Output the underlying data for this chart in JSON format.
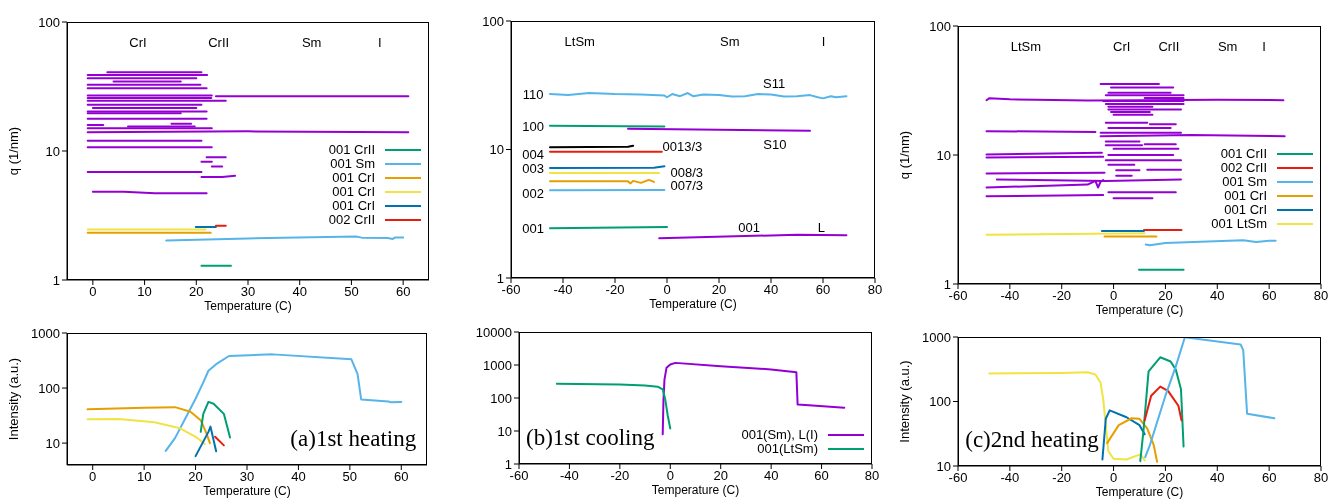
{
  "chart_data": [
    {
      "type": "line",
      "xlabel": "Temperature (C)",
      "ylabel": "q (1/nm)",
      "log": "y",
      "xlim": [
        -5,
        65
      ],
      "xticks": [
        0,
        10,
        20,
        30,
        40,
        50,
        60
      ],
      "ylim": [
        1,
        100
      ],
      "yticks": [
        1,
        10,
        100
      ],
      "legend": "right",
      "annotations": [
        "CrI",
        "CrII",
        "Sm",
        "I"
      ],
      "series": [
        {
          "color": "#9400d3",
          "x": [
            -1,
            22.1
          ],
          "values": [
            38.9,
            38.9
          ]
        },
        {
          "color": "#9400d3",
          "x": [
            2.8,
            21
          ],
          "values": [
            40.8,
            40.8
          ]
        },
        {
          "color": "#9400d3",
          "x": [
            -1,
            20
          ],
          "values": [
            36.7,
            36.7
          ]
        },
        {
          "color": "#9400d3",
          "x": [
            4,
            17
          ],
          "values": [
            34.6,
            34.6
          ]
        },
        {
          "color": "#9400d3",
          "x": [
            -1,
            20.8
          ],
          "values": [
            32.6,
            32.6
          ]
        },
        {
          "color": "#9400d3",
          "x": [
            -1,
            22
          ],
          "values": [
            30.7,
            30.7
          ]
        },
        {
          "color": "#9400d3",
          "x": [
            -1,
            23
          ],
          "values": [
            26.9,
            26.9
          ]
        },
        {
          "color": "#9400d3",
          "x": [
            23.8,
            61
          ],
          "values": [
            26.6,
            26.6
          ]
        },
        {
          "color": "#9400d3",
          "x": [
            -1,
            22.9
          ],
          "values": [
            25.7,
            25.7
          ]
        },
        {
          "color": "#9400d3",
          "x": [
            -1,
            25.7
          ],
          "values": [
            24.5,
            24.5
          ]
        },
        {
          "color": "#9400d3",
          "x": [
            -1,
            21
          ],
          "values": [
            22.8,
            22.8
          ]
        },
        {
          "color": "#9400d3",
          "x": [
            0,
            20
          ],
          "values": [
            21.5,
            21.5
          ]
        },
        {
          "color": "#9400d3",
          "x": [
            -1,
            22
          ],
          "values": [
            20.2,
            20.2
          ]
        },
        {
          "color": "#9400d3",
          "x": [
            -1,
            17
          ],
          "values": [
            19.6,
            19.6
          ]
        },
        {
          "color": "#9400d3",
          "x": [
            -1,
            22
          ],
          "values": [
            17.8,
            17.8
          ]
        },
        {
          "color": "#9400d3",
          "x": [
            -1,
            2
          ],
          "values": [
            15.9,
            15.9
          ]
        },
        {
          "color": "#9400d3",
          "x": [
            6.8,
            19.7
          ],
          "values": [
            15.5,
            15.5
          ]
        },
        {
          "color": "#9400d3",
          "x": [
            15.2,
            19
          ],
          "values": [
            16.3,
            16.3
          ]
        },
        {
          "color": "#9400d3",
          "x": [
            -1,
            23
          ],
          "values": [
            15,
            15
          ]
        },
        {
          "color": "#9400d3",
          "x": [
            -1,
            30,
            61
          ],
          "values": [
            14,
            14.2,
            14
          ]
        },
        {
          "color": "#9400d3",
          "x": [
            -1,
            21
          ],
          "values": [
            12,
            12
          ]
        },
        {
          "color": "#9400d3",
          "x": [
            -1,
            23
          ],
          "values": [
            10.7,
            10.7
          ]
        },
        {
          "color": "#9400d3",
          "x": [
            22,
            25.7
          ],
          "values": [
            8.93,
            8.93
          ]
        },
        {
          "color": "#9400d3",
          "x": [
            21,
            23
          ],
          "values": [
            8.26,
            8.26
          ]
        },
        {
          "color": "#9400d3",
          "x": [
            23,
            25
          ],
          "values": [
            7.6,
            7.6
          ]
        },
        {
          "color": "#9400d3",
          "x": [
            -1,
            21
          ],
          "values": [
            6.87,
            6.87
          ]
        },
        {
          "color": "#9400d3",
          "x": [
            21,
            25,
            27.5
          ],
          "values": [
            6.28,
            6.3,
            6.43
          ]
        },
        {
          "color": "#9400d3",
          "x": [
            0,
            6,
            12,
            22
          ],
          "values": [
            4.83,
            4.83,
            4.7,
            4.7
          ]
        },
        {
          "name": "001 CrII",
          "color": "#009e73",
          "x": [
            21,
            26.7
          ],
          "values": [
            1.29,
            1.29
          ]
        },
        {
          "name": "001 Sm",
          "color": "#56b4e9",
          "x": [
            14.2,
            30,
            50.9,
            52,
            57,
            58,
            58.5,
            60
          ],
          "values": [
            2.02,
            2.1,
            2.17,
            2.13,
            2.12,
            2.08,
            2.14,
            2.14
          ]
        },
        {
          "name": "001 CrI",
          "color": "#e69f00",
          "x": [
            -1,
            22.8
          ],
          "values": [
            2.32,
            2.32
          ]
        },
        {
          "name": "001 CrI",
          "color": "#f0e442",
          "x": [
            -1,
            21.8
          ],
          "values": [
            2.46,
            2.46
          ]
        },
        {
          "name": "001 CrI",
          "color": "#0072b2",
          "x": [
            19.9,
            23.8
          ],
          "values": [
            2.58,
            2.58
          ]
        },
        {
          "name": "002 CrII",
          "color": "#e51e10",
          "x": [
            23.8,
            25.7
          ],
          "values": [
            2.63,
            2.63
          ]
        }
      ]
    },
    {
      "type": "line",
      "xlabel": "Temperature (C)",
      "log": "y",
      "xlim": [
        -60,
        80
      ],
      "xticks": [
        -60,
        -40,
        -20,
        0,
        20,
        40,
        60,
        80
      ],
      "ylim": [
        1,
        100
      ],
      "yticks": [
        1,
        10,
        100
      ],
      "annotations": [
        "LtSm",
        "Sm",
        "I",
        "110",
        "100",
        "004",
        "003",
        "002",
        "001",
        "0013/3",
        "008/3",
        "007/3",
        "S11",
        "S10",
        "001",
        "L"
      ],
      "series": [
        {
          "color": "#56b4e9",
          "x": [
            -45,
            -38,
            -30,
            -20,
            -10,
            -1,
            0,
            2,
            5,
            8,
            10,
            14,
            20,
            25,
            30,
            35,
            40,
            45,
            50,
            55,
            58,
            60,
            63,
            65,
            69
          ],
          "values": [
            27,
            26.5,
            27.5,
            27,
            26.8,
            26.3,
            25.5,
            27,
            26,
            27.5,
            26,
            26.8,
            26.5,
            25.8,
            26,
            27,
            26.8,
            25.8,
            26,
            26.5,
            25.5,
            25,
            26,
            25.5,
            26
          ]
        },
        {
          "color": "#009e73",
          "x": [
            -45,
            -1
          ],
          "values": [
            15.3,
            15.1
          ]
        },
        {
          "color": "#9400d3",
          "x": [
            -15,
            55
          ],
          "values": [
            14.5,
            14
          ]
        },
        {
          "color": "#000000",
          "x": [
            -45,
            -15,
            -13
          ],
          "values": [
            10.4,
            10.5,
            10.7
          ]
        },
        {
          "color": "#e51e10",
          "x": [
            -45,
            -2
          ],
          "values": [
            9.6,
            9.6
          ]
        },
        {
          "color": "#0072b2",
          "x": [
            -45,
            -5,
            -1
          ],
          "values": [
            7.17,
            7.2,
            7.4
          ]
        },
        {
          "color": "#f0e442",
          "x": [
            -45,
            -3
          ],
          "values": [
            6.55,
            6.55
          ]
        },
        {
          "color": "#e69f00",
          "x": [
            -45,
            -15,
            -14,
            -13,
            -10,
            -7,
            -5
          ],
          "values": [
            5.65,
            5.65,
            5.45,
            5.7,
            5.5,
            5.8,
            5.6
          ]
        },
        {
          "color": "#56b4e9",
          "x": [
            -45,
            -1
          ],
          "values": [
            4.81,
            4.85
          ]
        },
        {
          "color": "#009e73",
          "x": [
            -45,
            0
          ],
          "values": [
            2.44,
            2.49
          ]
        },
        {
          "color": "#9400d3",
          "x": [
            -3,
            50,
            69
          ],
          "values": [
            2.04,
            2.17,
            2.15
          ]
        }
      ]
    },
    {
      "type": "line",
      "xlabel": "Temperature (C)",
      "ylabel": "q (1/nm)",
      "log": "y",
      "xlim": [
        -60,
        80
      ],
      "xticks": [
        -60,
        -40,
        -20,
        0,
        20,
        40,
        60,
        80
      ],
      "ylim": [
        1,
        100
      ],
      "yticks": [
        1,
        10,
        100
      ],
      "legend": "right",
      "annotations": [
        "LtSm",
        "CrI",
        "CrII",
        "Sm",
        "I"
      ],
      "series": [
        {
          "color": "#9400d3",
          "x": [
            -49,
            -48,
            -40,
            -30,
            -10,
            10,
            40,
            65.5
          ],
          "values": [
            26.6,
            27.5,
            27,
            26.8,
            26.4,
            26.6,
            26.8,
            26.6
          ]
        },
        {
          "color": "#9400d3",
          "x": [
            -49,
            -7
          ],
          "values": [
            15.3,
            15.1
          ]
        },
        {
          "color": "#9400d3",
          "x": [
            -49,
            -4.5
          ],
          "values": [
            10.1,
            10.4
          ]
        },
        {
          "color": "#9400d3",
          "x": [
            -49,
            -4
          ],
          "values": [
            9.57,
            9.7
          ]
        },
        {
          "color": "#9400d3",
          "x": [
            -49,
            -3.5
          ],
          "values": [
            7.18,
            7.3
          ]
        },
        {
          "color": "#9400d3",
          "x": [
            -45,
            -3,
            26
          ],
          "values": [
            6.45,
            6.3,
            6.45
          ]
        },
        {
          "color": "#9400d3",
          "x": [
            -49,
            -10,
            -7,
            -6,
            -5,
            -4
          ],
          "values": [
            5.6,
            5.9,
            6.3,
            5.6,
            6.2,
            6.4
          ]
        },
        {
          "color": "#9400d3",
          "x": [
            -49,
            -4
          ],
          "values": [
            4.79,
            4.9
          ]
        },
        {
          "color": "#9400d3",
          "x": [
            -5,
            17.5
          ],
          "values": [
            35.5,
            35.5
          ]
        },
        {
          "color": "#9400d3",
          "x": [
            -1,
            23
          ],
          "values": [
            33.4,
            33.4
          ]
        },
        {
          "color": "#9400d3",
          "x": [
            -2,
            22
          ],
          "values": [
            30.4,
            30.4
          ]
        },
        {
          "color": "#9400d3",
          "x": [
            -3,
            27
          ],
          "values": [
            29,
            29
          ]
        },
        {
          "color": "#9400d3",
          "x": [
            12,
            27
          ],
          "values": [
            27.6,
            27.6
          ]
        },
        {
          "color": "#9400d3",
          "x": [
            -4,
            27
          ],
          "values": [
            26.2,
            26.2
          ]
        },
        {
          "color": "#9400d3",
          "x": [
            -3,
            27
          ],
          "values": [
            24.8,
            24.8
          ]
        },
        {
          "color": "#9400d3",
          "x": [
            -2,
            15
          ],
          "values": [
            23.7,
            23.7
          ]
        },
        {
          "color": "#9400d3",
          "x": [
            -2,
            26
          ],
          "values": [
            22.5,
            22.5
          ]
        },
        {
          "color": "#9400d3",
          "x": [
            -1,
            14
          ],
          "values": [
            21.5,
            21.5
          ]
        },
        {
          "color": "#9400d3",
          "x": [
            0,
            15
          ],
          "values": [
            20.5,
            20.5
          ]
        },
        {
          "color": "#9400d3",
          "x": [
            -3,
            13
          ],
          "values": [
            17.8,
            17.8
          ]
        },
        {
          "color": "#9400d3",
          "x": [
            14,
            24
          ],
          "values": [
            17.3,
            17.3
          ]
        },
        {
          "color": "#9400d3",
          "x": [
            -2,
            22
          ],
          "values": [
            16.2,
            16.2
          ]
        },
        {
          "color": "#9400d3",
          "x": [
            -5,
            26
          ],
          "values": [
            14.9,
            14.9
          ]
        },
        {
          "color": "#9400d3",
          "x": [
            -5,
            30,
            66
          ],
          "values": [
            14,
            14.3,
            14
          ]
        },
        {
          "color": "#9400d3",
          "x": [
            -3,
            10
          ],
          "values": [
            12.7,
            12.7
          ]
        },
        {
          "color": "#9400d3",
          "x": [
            12,
            24
          ],
          "values": [
            12.1,
            12.1
          ]
        },
        {
          "color": "#9400d3",
          "x": [
            -3,
            11
          ],
          "values": [
            11.9,
            11.9
          ]
        },
        {
          "color": "#9400d3",
          "x": [
            0,
            25
          ],
          "values": [
            11.2,
            11.2
          ]
        },
        {
          "color": "#9400d3",
          "x": [
            -2,
            23
          ],
          "values": [
            10,
            10
          ]
        },
        {
          "color": "#9400d3",
          "x": [
            -3,
            26
          ],
          "values": [
            9.12,
            9.12
          ]
        },
        {
          "color": "#9400d3",
          "x": [
            -2,
            8
          ],
          "values": [
            8.39,
            8.39
          ]
        },
        {
          "color": "#9400d3",
          "x": [
            1,
            10
          ],
          "values": [
            7.62,
            7.62
          ]
        },
        {
          "color": "#9400d3",
          "x": [
            13,
            26
          ],
          "values": [
            7.7,
            7.7
          ]
        },
        {
          "color": "#9400d3",
          "x": [
            1,
            7
          ],
          "values": [
            6.89,
            6.89
          ]
        },
        {
          "color": "#9400d3",
          "x": [
            -2,
            24
          ],
          "values": [
            5.15,
            5.15
          ]
        },
        {
          "color": "#9400d3",
          "x": [
            0,
            15
          ],
          "values": [
            4.62,
            4.62
          ]
        },
        {
          "name": "001 CrII",
          "color": "#009e73",
          "x": [
            9.8,
            27
          ],
          "values": [
            1.29,
            1.29
          ]
        },
        {
          "name": "002 CrII",
          "color": "#e51e10",
          "x": [
            11.7,
            26.2
          ],
          "values": [
            2.62,
            2.62
          ]
        },
        {
          "name": "001 Sm",
          "color": "#56b4e9",
          "x": [
            12.4,
            14,
            20,
            50,
            55,
            60,
            62.5
          ],
          "values": [
            2.02,
            2,
            2.08,
            2.18,
            2.12,
            2.16,
            2.16
          ]
        },
        {
          "name": "001 CrI",
          "color": "#e69f00",
          "x": [
            -3.5,
            16.5
          ],
          "values": [
            2.33,
            2.33
          ]
        },
        {
          "name": "001 CrI",
          "color": "#0072b2",
          "x": [
            -4.5,
            11.7
          ],
          "values": [
            2.58,
            2.58
          ]
        },
        {
          "name": "001 LtSm",
          "color": "#f0e442",
          "x": [
            -49,
            12
          ],
          "values": [
            2.41,
            2.47
          ]
        }
      ]
    },
    {
      "type": "line",
      "xlabel": "Temperature (C)",
      "ylabel": "Intensity (a.u.)",
      "log": "y",
      "xlim": [
        -5,
        65
      ],
      "xticks": [
        0,
        10,
        20,
        30,
        40,
        50,
        60
      ],
      "ylim": [
        4,
        1000
      ],
      "yticks": [
        10,
        100,
        1000
      ],
      "annotations": [
        "(a)1st heating"
      ],
      "series": [
        {
          "color": "#56b4e9",
          "x": [
            14.2,
            16,
            18,
            20,
            21.5,
            22.5,
            24,
            26.5,
            35,
            50.3,
            51.5,
            52.2,
            57.5,
            58,
            60
          ],
          "values": [
            7.2,
            12.3,
            28,
            64,
            127,
            206,
            271,
            382,
            409,
            333,
            179,
            62,
            57,
            55,
            56
          ]
        },
        {
          "color": "#e69f00",
          "x": [
            -1,
            10,
            16,
            19,
            21,
            22,
            22.8
          ],
          "values": [
            41,
            44,
            45,
            37,
            26,
            16,
            10
          ]
        },
        {
          "color": "#f0e442",
          "x": [
            -1,
            5,
            12,
            17,
            20,
            21.8
          ],
          "values": [
            27,
            27.5,
            24,
            18.6,
            13,
            9.6
          ]
        },
        {
          "color": "#009e73",
          "x": [
            21,
            21.5,
            22.5,
            23.5,
            25.5,
            26.7
          ],
          "values": [
            16,
            34,
            56,
            52,
            34,
            12.6
          ]
        },
        {
          "color": "#0072b2",
          "x": [
            20,
            22.5,
            22.9,
            24
          ],
          "values": [
            5.8,
            16,
            19.9,
            7.1
          ]
        },
        {
          "color": "#e51e10",
          "x": [
            23.8,
            25.5
          ],
          "values": [
            13,
            9.1
          ]
        }
      ]
    },
    {
      "type": "line",
      "xlabel": "Temperature (C)",
      "log": "y",
      "xlim": [
        -60,
        80
      ],
      "xticks": [
        -60,
        -40,
        -20,
        0,
        20,
        40,
        60,
        80
      ],
      "ylim": [
        1,
        10000
      ],
      "yticks": [
        1,
        10,
        100,
        1000,
        10000
      ],
      "legend": "bottom right",
      "annotations": [
        "(b)1st cooling"
      ],
      "series": [
        {
          "name": "001(Sm), L(I)",
          "color": "#9400d3",
          "x": [
            -3,
            -2.7,
            -2.3,
            -1.5,
            0,
            2,
            20,
            40,
            50,
            50.5,
            55,
            69
          ],
          "values": [
            8,
            91,
            365,
            822,
            1035,
            1160,
            922,
            732,
            608,
            64,
            60,
            51
          ]
        },
        {
          "name": "001(LtSm)",
          "color": "#009e73",
          "x": [
            -45,
            -20,
            -10,
            -5,
            -3,
            -2,
            -1,
            0
          ],
          "values": [
            271,
            258,
            241,
            220,
            183,
            91,
            29,
            11.9
          ]
        }
      ]
    },
    {
      "type": "line",
      "xlabel": "Temperature (C)",
      "ylabel": "Intensity (a.u.)",
      "log": "y",
      "xlim": [
        -60,
        80
      ],
      "xticks": [
        -60,
        -40,
        -20,
        0,
        20,
        40,
        60,
        80
      ],
      "ylim": [
        10,
        1000
      ],
      "yticks": [
        10,
        100,
        1000
      ],
      "annotations": [
        "(c)2nd heating"
      ],
      "series": [
        {
          "color": "#f0e442",
          "x": [
            -48,
            -20,
            -10,
            -7,
            -5,
            -4,
            -3,
            -2,
            0,
            5,
            10,
            11,
            12
          ],
          "values": [
            271,
            277,
            284,
            262,
            195,
            109,
            43,
            16.9,
            12.9,
            12.6,
            15,
            14.2,
            12.2
          ]
        },
        {
          "color": "#0072b2",
          "x": [
            -4.3,
            -3,
            -1.5,
            5,
            10,
            12
          ],
          "values": [
            12.6,
            54,
            73,
            57,
            43,
            31
          ]
        },
        {
          "color": "#e69f00",
          "x": [
            -2.5,
            2,
            7,
            10,
            13,
            15.5,
            16.8
          ],
          "values": [
            22.6,
            43,
            55,
            54,
            38,
            21,
            11.6
          ]
        },
        {
          "color": "#009e73",
          "x": [
            10.3,
            11.5,
            13.5,
            18,
            22,
            24,
            26,
            27
          ],
          "values": [
            11.9,
            34,
            294,
            485,
            417,
            312,
            155,
            20
          ]
        },
        {
          "color": "#e51e10",
          "x": [
            12,
            14.5,
            18,
            21,
            25,
            26.2
          ],
          "values": [
            51,
            123,
            170,
            146,
            86,
            51
          ]
        },
        {
          "color": "#56b4e9",
          "x": [
            12.2,
            14,
            16,
            20,
            24,
            27.5,
            49,
            50,
            51.5,
            62
          ],
          "values": [
            13.7,
            21,
            38,
            123,
            350,
            990,
            766,
            627,
            64.6,
            55
          ]
        }
      ]
    }
  ]
}
